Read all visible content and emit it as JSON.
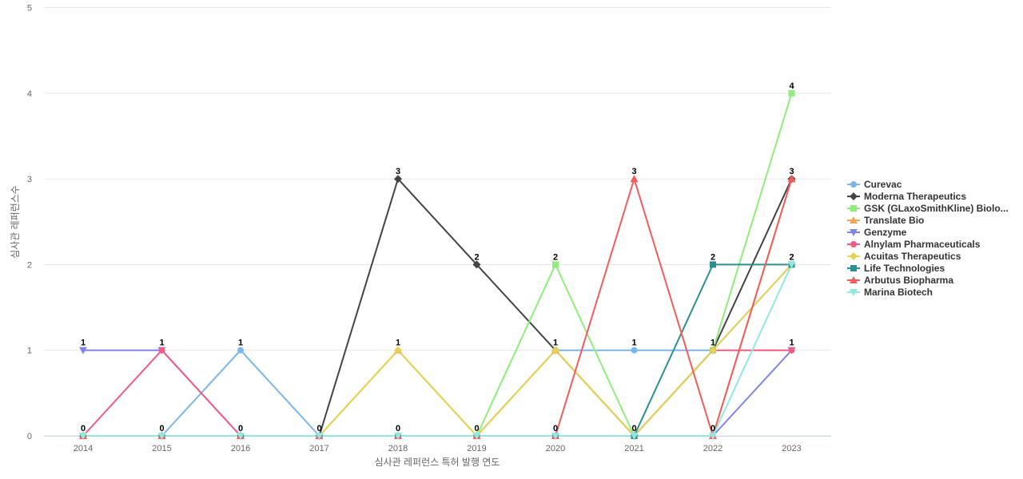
{
  "chart_data": {
    "type": "line",
    "xlabel": "심사관 레퍼런스 특허 발행 연도",
    "ylabel": "심사관 레퍼런스수",
    "ylim": [
      0,
      5
    ],
    "yticks": [
      0,
      1,
      2,
      3,
      4,
      5
    ],
    "grid": true,
    "legend_position": "right",
    "x": [
      "2014",
      "2015",
      "2016",
      "2017",
      "2018",
      "2019",
      "2020",
      "2021",
      "2022",
      "2023"
    ],
    "series": [
      {
        "name": "Curevac",
        "color": "#7cb5ec",
        "marker": "circle",
        "values": [
          0,
          0,
          1,
          0,
          0,
          0,
          1,
          1,
          1,
          2
        ]
      },
      {
        "name": "Moderna Therapeutics",
        "color": "#434348",
        "marker": "diamond",
        "values": [
          0,
          0,
          0,
          0,
          3,
          2,
          1,
          0,
          1,
          3
        ]
      },
      {
        "name": "GSK (GLaxoSmithKline) Biolo...",
        "color": "#90ed7d",
        "marker": "square",
        "values": [
          0,
          0,
          0,
          0,
          0,
          0,
          2,
          0,
          1,
          4
        ]
      },
      {
        "name": "Translate Bio",
        "color": "#f7a35c",
        "marker": "triangle",
        "values": [
          0,
          0,
          0,
          0,
          1,
          0,
          1,
          0,
          0,
          3
        ]
      },
      {
        "name": "Genzyme",
        "color": "#8085e9",
        "marker": "triangle-down",
        "values": [
          1,
          1,
          0,
          0,
          0,
          0,
          0,
          0,
          0,
          1
        ]
      },
      {
        "name": "Alnylam Pharmaceuticals",
        "color": "#f15c80",
        "marker": "circle",
        "values": [
          0,
          1,
          0,
          0,
          0,
          0,
          0,
          0,
          1,
          1
        ]
      },
      {
        "name": "Acuitas Therapeutics",
        "color": "#e4d354",
        "marker": "diamond",
        "values": [
          0,
          0,
          0,
          0,
          1,
          0,
          1,
          0,
          1,
          2
        ]
      },
      {
        "name": "Life Technologies",
        "color": "#2b908f",
        "marker": "square",
        "values": [
          0,
          0,
          0,
          0,
          0,
          0,
          0,
          0,
          2,
          2
        ]
      },
      {
        "name": "Arbutus Biopharma",
        "color": "#f45b5b",
        "marker": "triangle",
        "values": [
          0,
          0,
          0,
          0,
          0,
          0,
          0,
          3,
          0,
          3
        ]
      },
      {
        "name": "Marina Biotech",
        "color": "#91e8e1",
        "marker": "triangle-down",
        "values": [
          0,
          0,
          0,
          0,
          0,
          0,
          0,
          0,
          0,
          2
        ]
      }
    ],
    "data_labels": [
      {
        "x": "2014",
        "value": 1,
        "text": "1"
      },
      {
        "x": "2014",
        "value": 0,
        "text": "0"
      },
      {
        "x": "2015",
        "value": 1,
        "text": "1"
      },
      {
        "x": "2015",
        "value": 0,
        "text": "0"
      },
      {
        "x": "2016",
        "value": 1,
        "text": "1"
      },
      {
        "x": "2016",
        "value": 0,
        "text": "0"
      },
      {
        "x": "2017",
        "value": 0,
        "text": "0"
      },
      {
        "x": "2018",
        "value": 3,
        "text": "3"
      },
      {
        "x": "2018",
        "value": 1,
        "text": "1"
      },
      {
        "x": "2018",
        "value": 0,
        "text": "0"
      },
      {
        "x": "2019",
        "value": 2,
        "text": "2"
      },
      {
        "x": "2019",
        "value": 0,
        "text": "0"
      },
      {
        "x": "2020",
        "value": 2,
        "text": "2"
      },
      {
        "x": "2020",
        "value": 1,
        "text": "1"
      },
      {
        "x": "2020",
        "value": 0,
        "text": "0"
      },
      {
        "x": "2021",
        "value": 3,
        "text": "3"
      },
      {
        "x": "2021",
        "value": 1,
        "text": "1"
      },
      {
        "x": "2021",
        "value": 0,
        "text": "0"
      },
      {
        "x": "2022",
        "value": 2,
        "text": "2"
      },
      {
        "x": "2022",
        "value": 1,
        "text": "1"
      },
      {
        "x": "2022",
        "value": 0,
        "text": "0"
      },
      {
        "x": "2023",
        "value": 4,
        "text": "4"
      },
      {
        "x": "2023",
        "value": 3,
        "text": "3"
      },
      {
        "x": "2023",
        "value": 2,
        "text": "2"
      },
      {
        "x": "2023",
        "value": 1,
        "text": "1"
      }
    ]
  }
}
